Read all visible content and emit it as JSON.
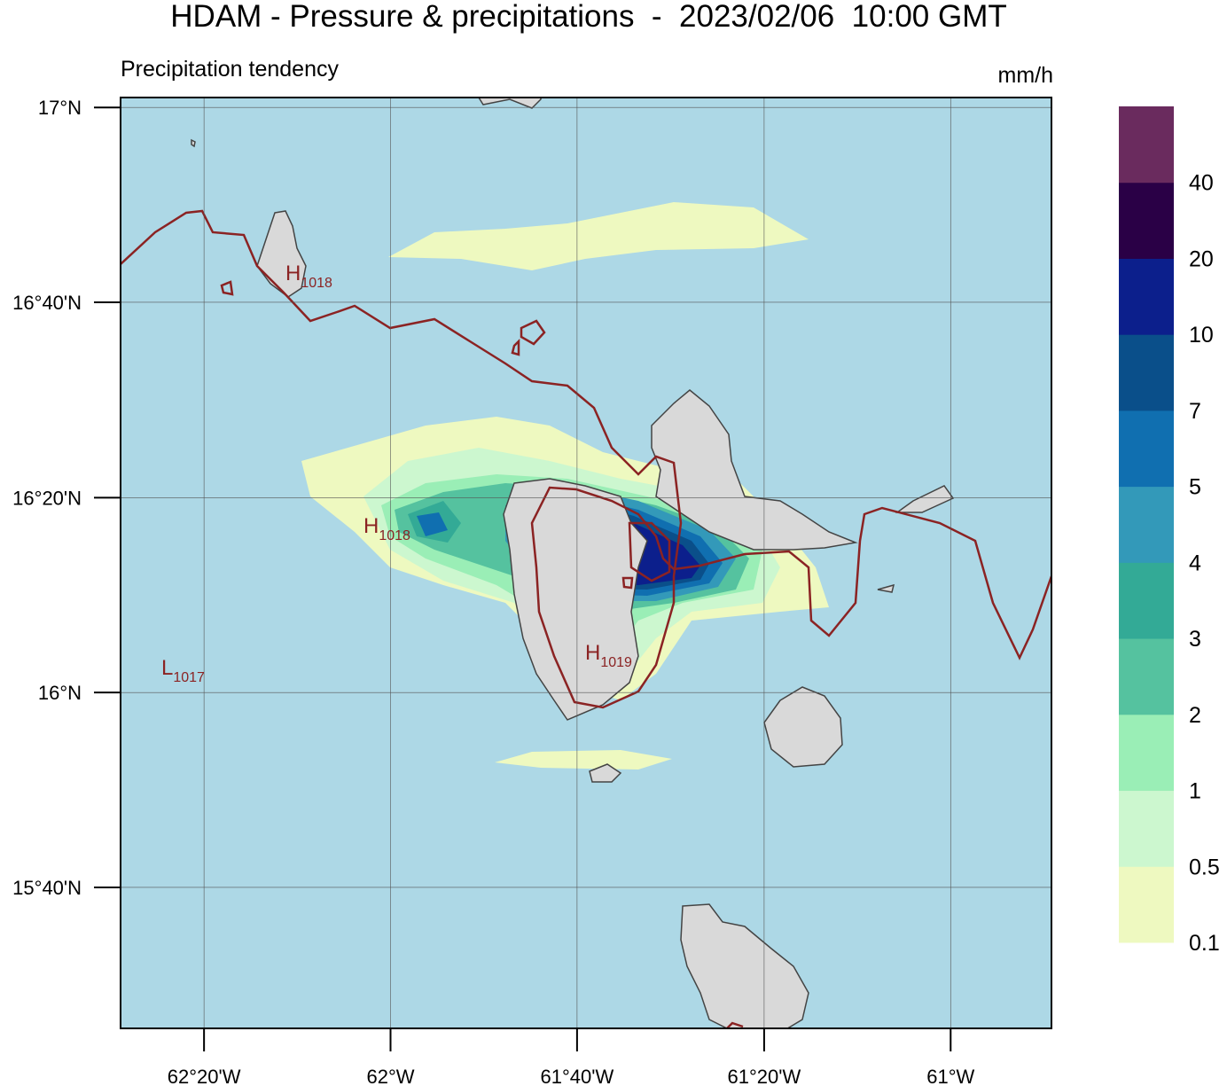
{
  "header": {
    "title": "HDAM - Pressure & precipitations  -  2023/02/06  10:00 GMT",
    "subtitle": "Precipitation tendency",
    "unit": "mm/h"
  },
  "map": {
    "lonlim": [
      -62.482,
      -60.82
    ],
    "latlim": [
      15.426,
      17.017
    ],
    "lon_ticks": [
      {
        "value": -62.333,
        "label": "62°20'W"
      },
      {
        "value": -62,
        "label": "62°W"
      },
      {
        "value": -61.667,
        "label": "61°40'W"
      },
      {
        "value": -61.333,
        "label": "61°20'W"
      },
      {
        "value": -61,
        "label": "61°W"
      }
    ],
    "lat_ticks": [
      {
        "value": 17,
        "label": "17°N"
      },
      {
        "value": 16.667,
        "label": "16°40'N"
      },
      {
        "value": 16.333,
        "label": "16°20'N"
      },
      {
        "value": 16,
        "label": "16°N"
      },
      {
        "value": 15.667,
        "label": "15°40'N"
      }
    ]
  },
  "colorbar": {
    "ticks": [
      0.1,
      0.5,
      1,
      2,
      3,
      4,
      5,
      7,
      10,
      20,
      40
    ],
    "colors": [
      "#eef9c0",
      "#ccf7cf",
      "#9aeeb6",
      "#55c29f",
      "#33aa96",
      "#3399b9",
      "#106fb0",
      "#0a4f8a",
      "#0c1f8c",
      "#2a0046",
      "#6a2b5e"
    ]
  },
  "pressure_centers": [
    {
      "letter": "H",
      "value": 1018
    },
    {
      "letter": "H",
      "value": 1018
    },
    {
      "letter": "H",
      "value": 1019
    },
    {
      "letter": "L",
      "value": 1017
    }
  ]
}
